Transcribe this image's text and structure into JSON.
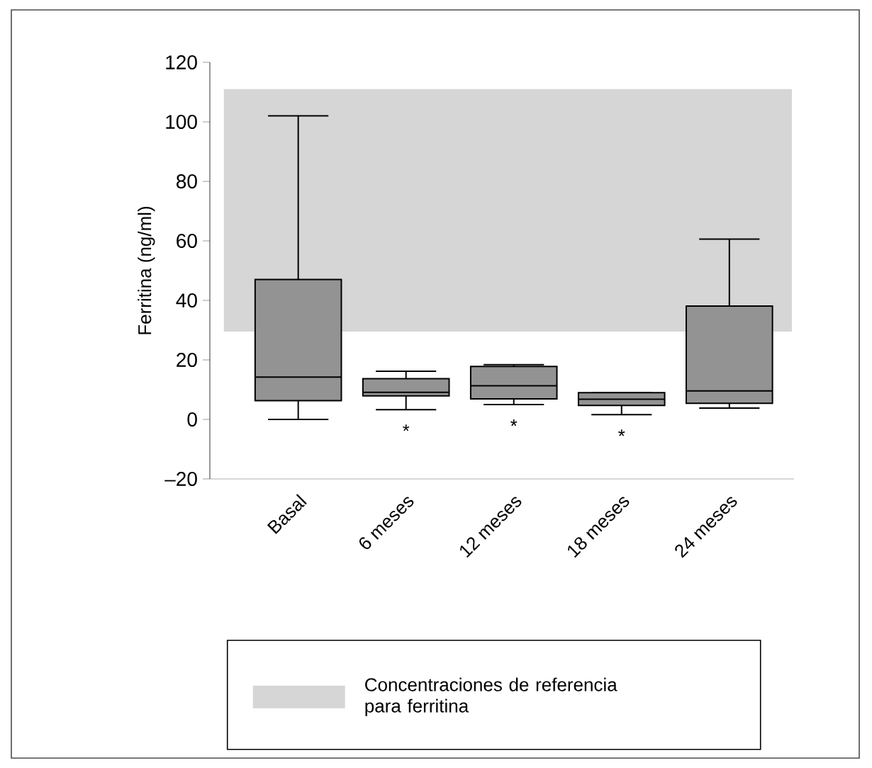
{
  "chart_data": {
    "type": "box",
    "ylabel": "Ferritina (ng/ml)",
    "categories": [
      "Basal",
      "6 meses",
      "12 meses",
      "18 meses",
      "24 meses"
    ],
    "series": [
      {
        "color": "#939393",
        "boxes": [
          {
            "low": 0,
            "q1": 6.3,
            "median": 14.2,
            "q3": 47,
            "high": 102
          },
          {
            "low": 3.3,
            "q1": 7.9,
            "median": 9.1,
            "q3": 13.7,
            "high": 16.2
          },
          {
            "low": 5,
            "q1": 6.9,
            "median": 11.3,
            "q3": 17.8,
            "high": 18.4
          },
          {
            "low": 1.6,
            "q1": 4.7,
            "median": 6.8,
            "q3": 9,
            "high": 9
          },
          {
            "low": 3.8,
            "q1": 5.4,
            "median": 9.6,
            "q3": 38.1,
            "high": 60.6
          }
        ]
      }
    ],
    "ylim": [
      -20,
      120
    ],
    "yticks": [
      {
        "value": -20,
        "label": "–20"
      },
      0,
      20,
      40,
      60,
      80,
      100,
      120
    ],
    "bands": [
      {
        "axis": "y",
        "from": 29.5,
        "to": 111,
        "label": "Concentraciones de referencia para ferritina",
        "color": "#d6d6d6"
      }
    ],
    "annotations": [
      "*",
      "*",
      "*"
    ],
    "legend": "bottom"
  }
}
